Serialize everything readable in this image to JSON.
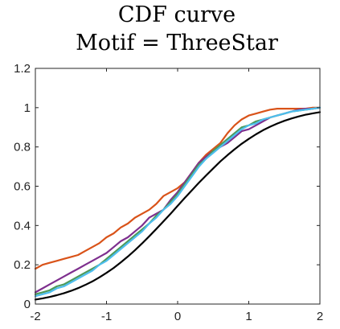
{
  "chart_data": {
    "type": "line",
    "title_lines": [
      "CDF curve",
      "Motif = ThreeStar"
    ],
    "xlabel": "",
    "ylabel": "",
    "xlim": [
      -2,
      2
    ],
    "ylim": [
      0,
      1.2
    ],
    "xticks": [
      -2,
      -1,
      0,
      1,
      2
    ],
    "yticks": [
      0,
      0.2,
      0.4,
      0.6,
      0.8,
      1,
      1.2
    ],
    "xtick_labels": [
      "-2",
      "-1",
      "0",
      "1",
      "2"
    ],
    "ytick_labels": [
      "0",
      "0.2",
      "0.4",
      "0.6",
      "0.8",
      "1",
      "1.2"
    ],
    "grid": false,
    "box": true,
    "series": [
      {
        "color": "#D95319",
        "x": [
          -2.0,
          -1.9,
          -1.8,
          -1.7,
          -1.6,
          -1.5,
          -1.4,
          -1.3,
          -1.2,
          -1.1,
          -1.0,
          -0.9,
          -0.8,
          -0.7,
          -0.6,
          -0.5,
          -0.4,
          -0.3,
          -0.2,
          -0.1,
          0.0,
          0.1,
          0.2,
          0.3,
          0.4,
          0.5,
          0.6,
          0.7,
          0.8,
          0.9,
          1.0,
          1.1,
          1.2,
          1.3,
          1.4,
          1.5,
          1.6,
          1.7,
          1.8,
          1.9,
          2.0
        ],
        "y": [
          0.18,
          0.2,
          0.21,
          0.22,
          0.23,
          0.24,
          0.25,
          0.27,
          0.29,
          0.31,
          0.34,
          0.36,
          0.39,
          0.41,
          0.44,
          0.46,
          0.48,
          0.51,
          0.55,
          0.57,
          0.59,
          0.62,
          0.67,
          0.72,
          0.76,
          0.79,
          0.82,
          0.87,
          0.91,
          0.94,
          0.96,
          0.97,
          0.98,
          0.99,
          0.995,
          0.995,
          0.995,
          0.995,
          0.995,
          1.0,
          1.0
        ]
      },
      {
        "color": "#7E2F8E",
        "x": [
          -2.0,
          -1.9,
          -1.8,
          -1.7,
          -1.6,
          -1.5,
          -1.4,
          -1.3,
          -1.2,
          -1.1,
          -1.0,
          -0.9,
          -0.8,
          -0.7,
          -0.6,
          -0.5,
          -0.4,
          -0.3,
          -0.2,
          -0.1,
          0.0,
          0.1,
          0.2,
          0.3,
          0.4,
          0.5,
          0.6,
          0.7,
          0.8,
          0.9,
          1.0,
          1.1,
          1.2,
          1.3,
          1.4,
          1.5,
          1.6,
          1.7,
          1.8,
          1.9,
          2.0
        ],
        "y": [
          0.06,
          0.08,
          0.1,
          0.12,
          0.14,
          0.16,
          0.18,
          0.2,
          0.22,
          0.24,
          0.26,
          0.29,
          0.32,
          0.34,
          0.37,
          0.4,
          0.44,
          0.46,
          0.48,
          0.53,
          0.57,
          0.62,
          0.67,
          0.72,
          0.75,
          0.78,
          0.8,
          0.82,
          0.85,
          0.88,
          0.89,
          0.91,
          0.93,
          0.95,
          0.96,
          0.97,
          0.98,
          0.99,
          0.995,
          0.995,
          1.0
        ]
      },
      {
        "color": "#4C9A5B",
        "x": [
          -2.0,
          -1.9,
          -1.8,
          -1.7,
          -1.6,
          -1.5,
          -1.4,
          -1.3,
          -1.2,
          -1.1,
          -1.0,
          -0.9,
          -0.8,
          -0.7,
          -0.6,
          -0.5,
          -0.4,
          -0.3,
          -0.2,
          -0.1,
          0.0,
          0.1,
          0.2,
          0.3,
          0.4,
          0.5,
          0.6,
          0.7,
          0.8,
          0.9,
          1.0,
          1.1,
          1.2,
          1.3,
          1.4,
          1.5,
          1.6,
          1.7,
          1.8,
          1.9,
          2.0
        ],
        "y": [
          0.05,
          0.06,
          0.07,
          0.09,
          0.1,
          0.12,
          0.14,
          0.16,
          0.18,
          0.2,
          0.23,
          0.26,
          0.29,
          0.32,
          0.35,
          0.38,
          0.41,
          0.45,
          0.48,
          0.52,
          0.56,
          0.61,
          0.66,
          0.71,
          0.74,
          0.78,
          0.81,
          0.84,
          0.87,
          0.9,
          0.91,
          0.93,
          0.94,
          0.95,
          0.96,
          0.97,
          0.98,
          0.985,
          0.99,
          0.995,
          1.0
        ]
      },
      {
        "color": "#4DBEEE",
        "x": [
          -2.0,
          -1.9,
          -1.8,
          -1.7,
          -1.6,
          -1.5,
          -1.4,
          -1.3,
          -1.2,
          -1.1,
          -1.0,
          -0.9,
          -0.8,
          -0.7,
          -0.6,
          -0.5,
          -0.4,
          -0.3,
          -0.2,
          -0.1,
          0.0,
          0.1,
          0.2,
          0.3,
          0.4,
          0.5,
          0.6,
          0.7,
          0.8,
          0.9,
          1.0,
          1.1,
          1.2,
          1.3,
          1.4,
          1.5,
          1.6,
          1.7,
          1.8,
          1.9,
          2.0
        ],
        "y": [
          0.04,
          0.05,
          0.06,
          0.08,
          0.09,
          0.11,
          0.13,
          0.15,
          0.17,
          0.2,
          0.22,
          0.25,
          0.28,
          0.31,
          0.34,
          0.37,
          0.41,
          0.44,
          0.48,
          0.51,
          0.55,
          0.6,
          0.65,
          0.7,
          0.74,
          0.77,
          0.8,
          0.83,
          0.86,
          0.89,
          0.91,
          0.92,
          0.94,
          0.95,
          0.96,
          0.97,
          0.98,
          0.985,
          0.99,
          0.995,
          1.0
        ]
      },
      {
        "color": "#000000",
        "x": [
          -2.0,
          -1.9,
          -1.8,
          -1.7,
          -1.6,
          -1.5,
          -1.4,
          -1.3,
          -1.2,
          -1.1,
          -1.0,
          -0.9,
          -0.8,
          -0.7,
          -0.6,
          -0.5,
          -0.4,
          -0.3,
          -0.2,
          -0.1,
          0.0,
          0.1,
          0.2,
          0.3,
          0.4,
          0.5,
          0.6,
          0.7,
          0.8,
          0.9,
          1.0,
          1.1,
          1.2,
          1.3,
          1.4,
          1.5,
          1.6,
          1.7,
          1.8,
          1.9,
          2.0
        ],
        "y": [
          0.023,
          0.029,
          0.036,
          0.045,
          0.055,
          0.067,
          0.081,
          0.097,
          0.115,
          0.136,
          0.159,
          0.184,
          0.212,
          0.242,
          0.274,
          0.309,
          0.345,
          0.382,
          0.421,
          0.46,
          0.5,
          0.54,
          0.579,
          0.618,
          0.655,
          0.691,
          0.726,
          0.758,
          0.788,
          0.816,
          0.841,
          0.864,
          0.885,
          0.903,
          0.919,
          0.933,
          0.945,
          0.955,
          0.964,
          0.971,
          0.977
        ]
      }
    ]
  }
}
